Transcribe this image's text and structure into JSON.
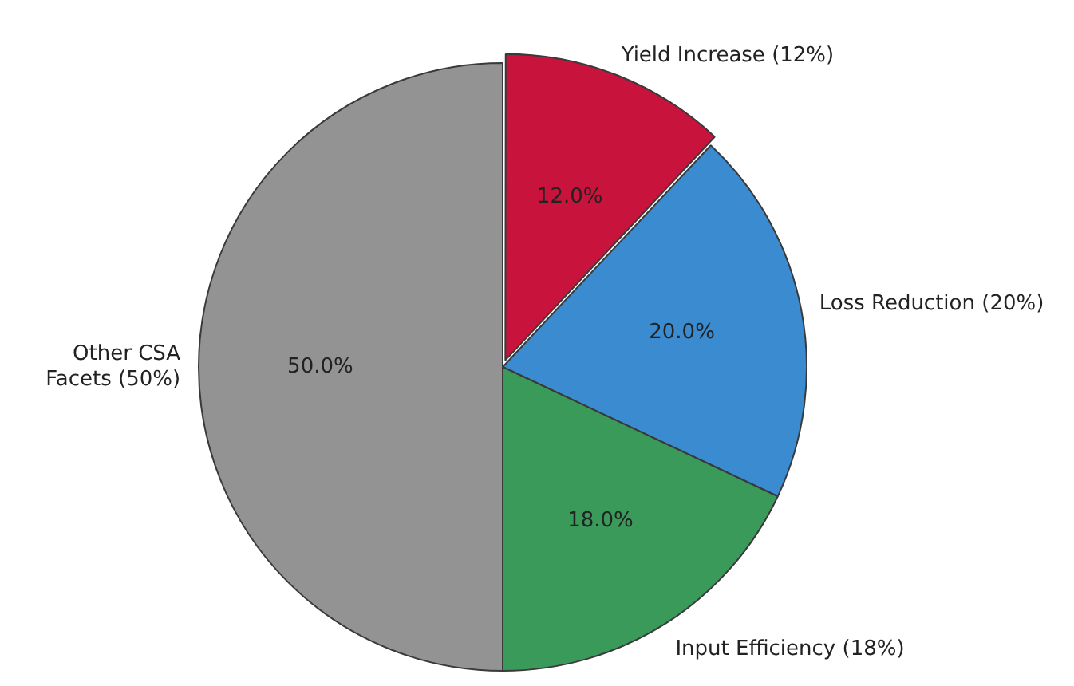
{
  "chart_data": {
    "type": "pie",
    "categories": [
      "Yield Increase (12%)",
      "Loss Reduction (20%)",
      "Input Efficiency (18%)",
      "Other CSA Facets (50%)"
    ],
    "values": [
      12,
      20,
      18,
      50
    ],
    "colors": [
      "#c8143c",
      "#3a8bd0",
      "#3a9a5a",
      "#939393"
    ],
    "value_labels": [
      "12.0%",
      "20.0%",
      "18.0%",
      "50.0%"
    ],
    "legend": false
  }
}
